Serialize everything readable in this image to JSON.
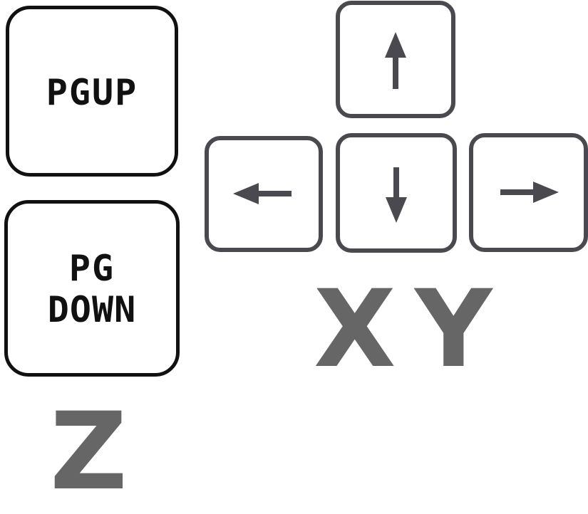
{
  "keys": {
    "pgup": {
      "label": "PGUP"
    },
    "pgdown": {
      "line1": "PG",
      "line2": "DOWN"
    }
  },
  "axes": {
    "z": "Z",
    "x": "X",
    "y": "Y"
  },
  "icons": {
    "up": "arrow-up-icon",
    "down": "arrow-down-icon",
    "left": "arrow-left-icon",
    "right": "arrow-right-icon"
  },
  "colors": {
    "key_outline_black": "#111111",
    "key_outline_grey": "#4a4950",
    "arrow_fill": "#4a4950",
    "letter_grey": "#666666"
  }
}
